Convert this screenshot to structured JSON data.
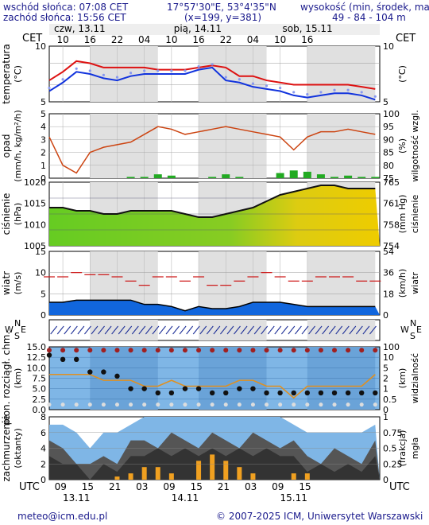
{
  "header": {
    "sunrise": "wschód słońca: 07:08 CET",
    "sunset": "zachód słońca: 15:56 CET",
    "coords": "17°57'30\"E, 53°4'35\"N",
    "grid": "(x=199, y=381)",
    "elev_label": "wysokość (min, środek, max)",
    "elev_values": "49 - 84 - 104 m"
  },
  "top_axis": {
    "tz": "CET",
    "days": [
      "czw, 13.11",
      "pią, 14.11",
      "sob, 15.11"
    ],
    "hours": [
      "10",
      "16",
      "22",
      "04",
      "10",
      "16",
      "22",
      "04",
      "10",
      "16"
    ]
  },
  "bottom_axis": {
    "tz": "UTC",
    "hours": [
      "09",
      "15",
      "21",
      "03",
      "09",
      "15",
      "21",
      "03",
      "09",
      "15"
    ],
    "days": [
      "13.11",
      "14.11",
      "15.11"
    ]
  },
  "footer": {
    "email": "meteo@icm.edu.pl",
    "copyright": "© 2007-2025 ICM, Uniwersytet Warszawski"
  },
  "colors": {
    "temp_max": "#dd1111",
    "temp_min": "#1133dd",
    "precip": "#22aa22",
    "humidity": "#cc4411",
    "pressure_line": "#111111",
    "wind_gust": "#cc1111",
    "wind_area": "#1166dd",
    "cloud_dark": "#333333"
  },
  "panels": [
    {
      "name": "temperature",
      "left_label": "temperatura",
      "left_unit": "(°C)",
      "right_unit": "(°C)",
      "right_label": "",
      "left_ticks": [
        "10",
        "5"
      ],
      "right_ticks": [
        "10",
        "5"
      ]
    },
    {
      "name": "precip",
      "left_label": "opad",
      "left_unit": "(mm/h, kg/m²/h)",
      "right_unit": "(%)",
      "right_label": "wilgotność wzgl.",
      "left_ticks": [
        "5",
        "4",
        "3",
        "2",
        "1",
        "0"
      ],
      "right_ticks": [
        "100",
        "95",
        "90",
        "85",
        "80",
        "75"
      ]
    },
    {
      "name": "pressure",
      "left_label": "ciśnienie",
      "left_unit": "(hPa)",
      "right_unit": "(mm Hg)",
      "right_label": "ciśnienie",
      "left_ticks": [
        "1020",
        "1015",
        "1010",
        "1005"
      ],
      "right_ticks": [
        "765",
        "761",
        "758",
        "754"
      ]
    },
    {
      "name": "wind",
      "left_label": "wiatr",
      "left_unit": "(m/s)",
      "right_unit": "(km/h)",
      "right_label": "wiatr",
      "left_ticks": [
        "15",
        "10",
        "5",
        "0"
      ],
      "right_ticks": [
        "54",
        "36",
        "18",
        "0"
      ]
    },
    {
      "name": "cloud-base",
      "left_label": "pion. rozciągł. chm.",
      "left_unit": "(km)",
      "right_unit": "(km)",
      "right_label": "widzialność",
      "left_ticks": [
        "15.0",
        "12.5",
        "10.0",
        "7.5",
        "5.0",
        "2.5",
        "0.0"
      ],
      "right_ticks": [
        "100",
        "10",
        "5",
        "2",
        "1",
        "0.5",
        "0"
      ]
    },
    {
      "name": "cloud-cover",
      "left_label": "zachmurzenie",
      "left_unit": "(oktanty)",
      "right_unit": "(frakcja)",
      "right_label": "mgła",
      "left_ticks": [
        "8",
        "6",
        "4",
        "2",
        "0"
      ],
      "right_ticks": [
        "1",
        "0.75",
        "0.5",
        "0.25",
        "0"
      ]
    }
  ],
  "wind_dir_labels": {
    "w": "W",
    "n": "N",
    "s": "S",
    "e": "E"
  },
  "chart_data": {
    "type": "line",
    "x_hours_cet": [
      7,
      10,
      13,
      16,
      19,
      22,
      25,
      28,
      31,
      34,
      37,
      40,
      43,
      46,
      49,
      52,
      55,
      58,
      61,
      64,
      67,
      70,
      73,
      76,
      79
    ],
    "temperature": {
      "ylim": [
        1,
        14
      ],
      "max": [
        6,
        8,
        10.5,
        10,
        9,
        9,
        9,
        9,
        8.5,
        8.5,
        8.5,
        9,
        9.5,
        9,
        7,
        7,
        6,
        5.5,
        5,
        5,
        5,
        5,
        5,
        4.5,
        4
      ],
      "min": [
        3.5,
        5.5,
        8,
        7.5,
        6.5,
        6,
        7,
        7.5,
        7.5,
        7.5,
        7.5,
        8.5,
        9,
        6,
        5.5,
        4.5,
        4,
        3.5,
        2.5,
        2,
        2.5,
        3,
        3,
        2.5,
        1.5
      ]
    },
    "precip_humidity": {
      "precip_ylim": [
        0,
        5
      ],
      "humidity_ylim": [
        75,
        100
      ],
      "humidity": [
        91,
        80,
        77,
        85,
        87,
        88,
        89,
        92,
        95,
        94,
        92,
        93,
        94,
        95,
        94,
        93,
        92,
        91,
        86,
        91,
        93,
        93,
        94,
        93,
        92
      ],
      "precip": [
        0,
        0,
        0,
        0,
        0,
        0,
        0.1,
        0.1,
        0.3,
        0.2,
        0,
        0,
        0.1,
        0.3,
        0.1,
        0,
        0,
        0.4,
        0.6,
        0.5,
        0.3,
        0.1,
        0.2,
        0.1,
        0.1
      ]
    },
    "pressure": {
      "ylim": [
        1000,
        1020
      ],
      "hpa": [
        1012,
        1012,
        1011,
        1011,
        1010,
        1010,
        1011,
        1011,
        1011,
        1011,
        1010,
        1009,
        1009,
        1010,
        1011,
        1012,
        1014,
        1016,
        1017,
        1018,
        1019,
        1019,
        1018,
        1018,
        1018
      ]
    },
    "wind": {
      "ylim": [
        0,
        15
      ],
      "speed": [
        3,
        3,
        3.5,
        3.5,
        3.5,
        3.5,
        3.5,
        2.5,
        2.5,
        2,
        1,
        2,
        1.5,
        1.5,
        2,
        3,
        3,
        3,
        2.5,
        2,
        2,
        2,
        2,
        2,
        2
      ],
      "gust": [
        9,
        9,
        10,
        9.5,
        9.5,
        9,
        8,
        7,
        9,
        9,
        8,
        9,
        7,
        7,
        8,
        9,
        10,
        9,
        8,
        8,
        9,
        9,
        9,
        8,
        8
      ]
    },
    "cloud_base": {
      "ylim": [
        0,
        15
      ],
      "visibility_km": [
        3,
        3,
        3,
        3,
        2.5,
        2.5,
        2.5,
        2,
        2,
        2.5,
        2,
        2,
        2,
        2,
        2.5,
        2.5,
        2,
        2,
        1,
        2,
        2,
        2,
        2,
        2,
        3
      ],
      "cloud_base_km": [
        13,
        12,
        12,
        9,
        9,
        8,
        5,
        5,
        4,
        4,
        5,
        5,
        4,
        4,
        5,
        5,
        4,
        4,
        4,
        4,
        4,
        4,
        4,
        4,
        4
      ]
    },
    "cloud_cover": {
      "ylim": [
        0,
        8
      ],
      "total_oktas": [
        7,
        7,
        6,
        4,
        6,
        6,
        7,
        8,
        8,
        8,
        8,
        8,
        8,
        8,
        8,
        8,
        8,
        8,
        7,
        6,
        6,
        6,
        6,
        6,
        7
      ],
      "fog": [
        0,
        0,
        0,
        0,
        0,
        0.05,
        0.1,
        0.2,
        0.2,
        0.1,
        0,
        0.3,
        0.4,
        0.3,
        0.2,
        0.1,
        0,
        0,
        0.1,
        0.1,
        0,
        0,
        0,
        0,
        0
      ]
    }
  }
}
